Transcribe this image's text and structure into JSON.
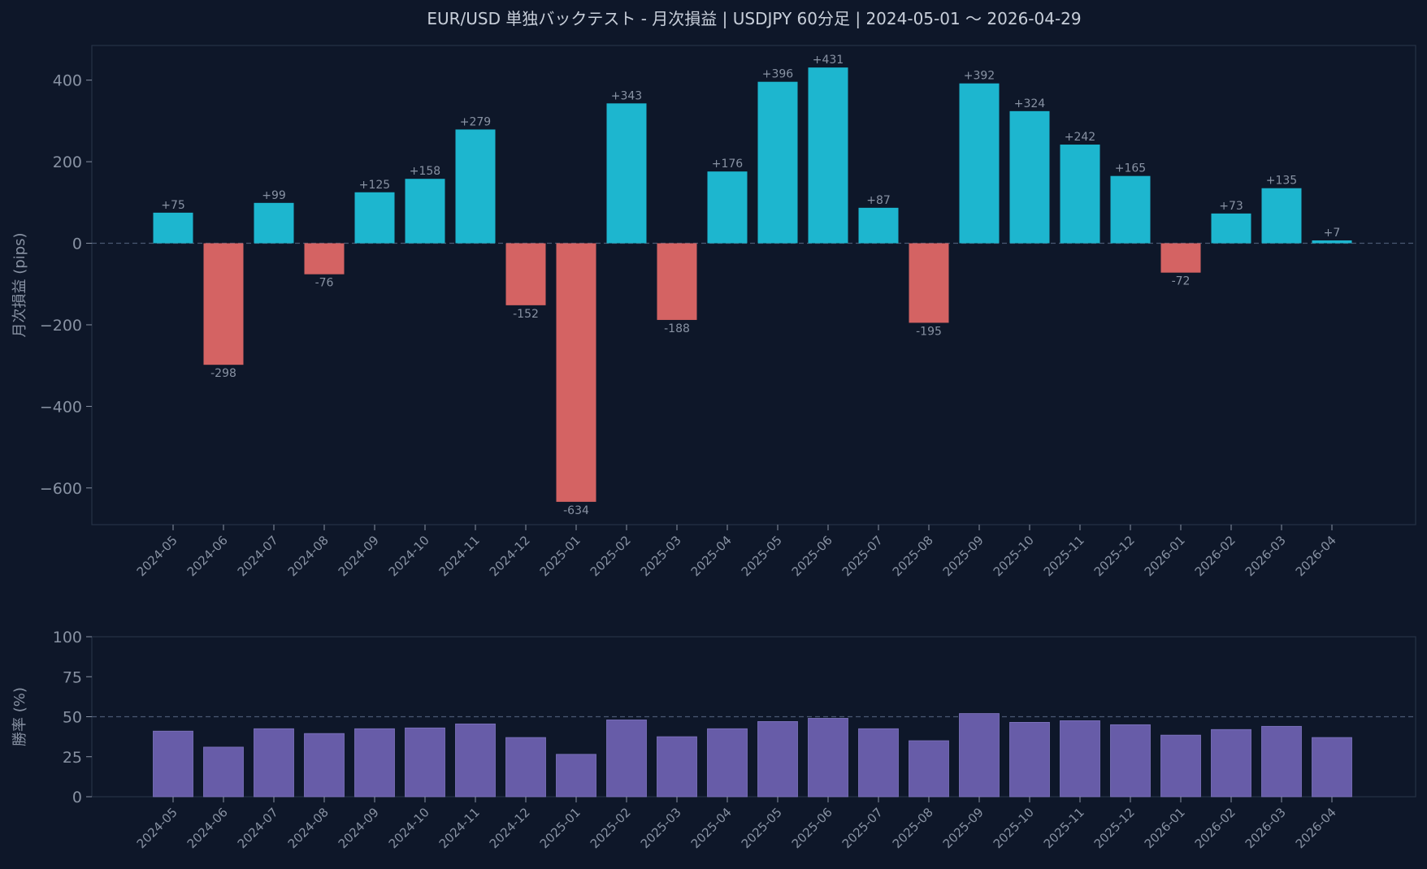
{
  "title": "EUR/USD 単独バックテスト - 月次損益 | USDJPY 60分足 | 2024-05-01 〜 2026-04-29",
  "colors": {
    "background": "#0e1729",
    "positive": "#1db6cf",
    "negative": "#d46363",
    "winrate": "#675ca8",
    "text": "#c8cfda",
    "muted": "#8892a3",
    "frame": "#253247"
  },
  "chart_data": [
    {
      "type": "bar",
      "ylabel": "月次損益 (pips)",
      "ylim": [
        -690,
        485
      ],
      "yticks": [
        400,
        200,
        0,
        -200,
        -400,
        -600
      ],
      "ytick_labels": [
        "400",
        "200",
        "0",
        "−200",
        "−400",
        "−600"
      ],
      "reference_line": 0,
      "categories": [
        "2024-05",
        "2024-06",
        "2024-07",
        "2024-08",
        "2024-09",
        "2024-10",
        "2024-11",
        "2024-12",
        "2025-01",
        "2025-02",
        "2025-03",
        "2025-04",
        "2025-05",
        "2025-06",
        "2025-07",
        "2025-08",
        "2025-09",
        "2025-10",
        "2025-11",
        "2025-12",
        "2026-01",
        "2026-02",
        "2026-03",
        "2026-04"
      ],
      "values": [
        75,
        -298,
        99,
        -76,
        125,
        158,
        279,
        -152,
        -634,
        343,
        -188,
        176,
        396,
        431,
        87,
        -195,
        392,
        324,
        242,
        165,
        -72,
        73,
        135,
        7
      ],
      "data_labels": [
        "+75",
        "-298",
        "+99",
        "-76",
        "+125",
        "+158",
        "+279",
        "-152",
        "-634",
        "+343",
        "-188",
        "+176",
        "+396",
        "+431",
        "+87",
        "-195",
        "+392",
        "+324",
        "+242",
        "+165",
        "-72",
        "+73",
        "+135",
        "+7"
      ],
      "grid": false
    },
    {
      "type": "bar",
      "ylabel": "勝率 (%)",
      "ylim": [
        0,
        100
      ],
      "yticks": [
        100,
        75,
        50,
        25,
        0
      ],
      "ytick_labels": [
        "100",
        "75",
        "50",
        "25",
        "0"
      ],
      "reference_line": 50,
      "categories": [
        "2024-05",
        "2024-06",
        "2024-07",
        "2024-08",
        "2024-09",
        "2024-10",
        "2024-11",
        "2024-12",
        "2025-01",
        "2025-02",
        "2025-03",
        "2025-04",
        "2025-05",
        "2025-06",
        "2025-07",
        "2025-08",
        "2025-09",
        "2025-10",
        "2025-11",
        "2025-12",
        "2026-01",
        "2026-02",
        "2026-03",
        "2026-04"
      ],
      "values": [
        41,
        31,
        42.5,
        39.5,
        42.5,
        43,
        45.5,
        37,
        26.5,
        48,
        37.5,
        42.5,
        47,
        49,
        42.5,
        35,
        52,
        46.5,
        47.5,
        45,
        38.5,
        42,
        44,
        37
      ],
      "grid": false
    }
  ]
}
